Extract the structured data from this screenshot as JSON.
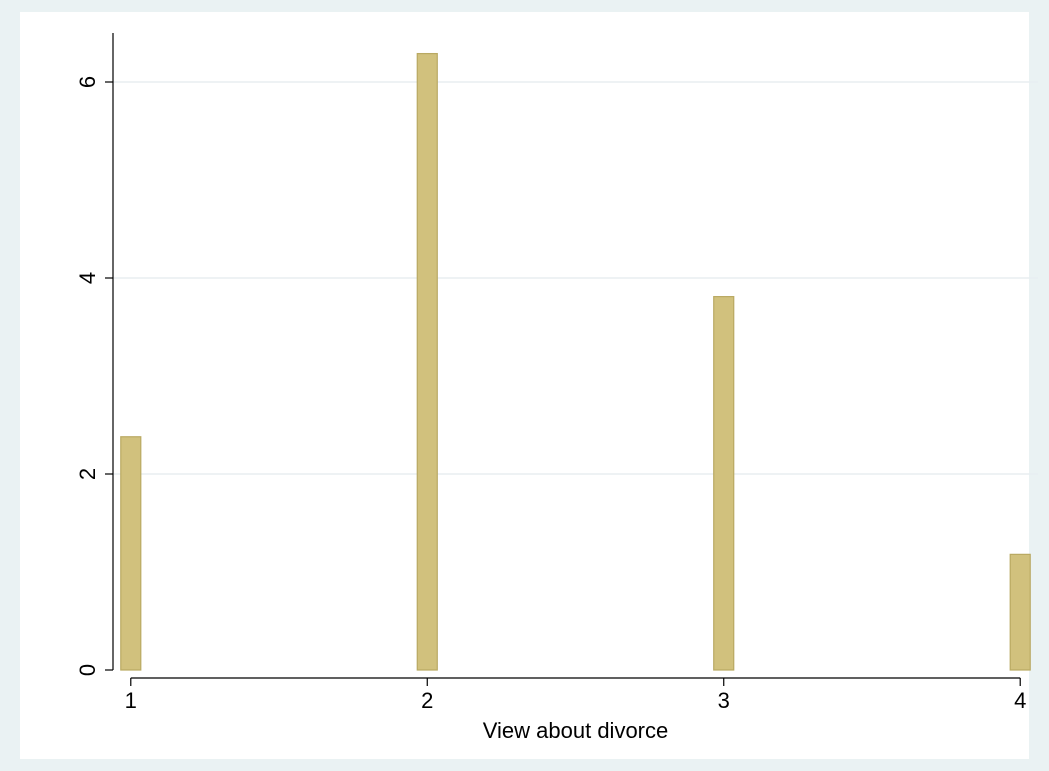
{
  "chart_data": {
    "type": "bar",
    "x": [
      1,
      2,
      3,
      4
    ],
    "values": [
      2.38,
      6.29,
      3.81,
      1.18
    ],
    "x_ticks": [
      "1",
      "2",
      "3",
      "4"
    ],
    "y_ticks": [
      "0",
      "2",
      "4",
      "6"
    ],
    "xlabel": "View about divorce",
    "ylabel": "",
    "xlim": [
      0.94,
      4.06
    ],
    "ylim": [
      0,
      6.5
    ],
    "grid": "horizontal",
    "legend": "none",
    "colors": {
      "background": "#eaf2f3",
      "plot_area": "#ffffff",
      "bar_fill": "#d1c17d",
      "bar_stroke": "#b9a962",
      "grid": "#e8eef1",
      "axis": "#000000"
    }
  }
}
